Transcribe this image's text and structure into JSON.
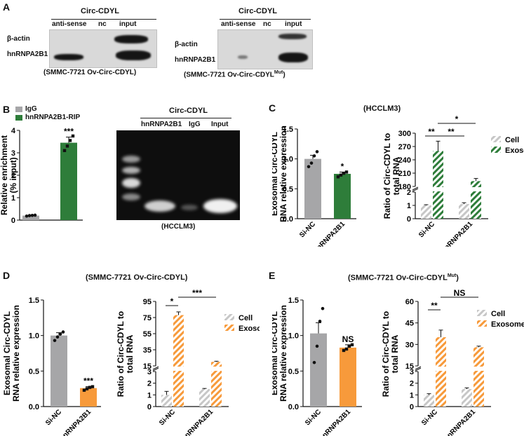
{
  "panelA": {
    "label": "A",
    "left": {
      "header": "Circ-CDYL",
      "lanes": [
        "anti-sense",
        "nc",
        "input"
      ],
      "rows": [
        "β-actin",
        "hnRNPA2B1"
      ],
      "caption": "(SMMC-7721 Ov-Circ-CDYL)"
    },
    "right": {
      "header": "Circ-CDYL",
      "lanes": [
        "anti-sense",
        "nc",
        "input"
      ],
      "rows": [
        "β-actin",
        "hnRNPA2B1"
      ],
      "caption_main": "(SMMC-7721 Ov-Circ-CDYL",
      "caption_sup": "Mut",
      "caption_end": ")"
    }
  },
  "panelB": {
    "label": "B",
    "legend": [
      "IgG",
      "hnRNPA2B1-RIP"
    ],
    "colors": {
      "igg": "#a6a6a8",
      "rip": "#2e7d3a"
    },
    "gel_header": "Circ-CDYL",
    "gel_lanes": [
      "hnRNPA2B1",
      "IgG",
      "Input"
    ],
    "gel_caption": "(HCCLM3)"
  },
  "panelC": {
    "label": "C",
    "title": "(HCCLM3)"
  },
  "panelD": {
    "label": "D",
    "title": "(SMMC-7721 Ov-Circ-CDYL)"
  },
  "panelE": {
    "label": "E",
    "title_main": "(SMMC-7721 Ov-Circ-CDYL",
    "title_sup": "Mut",
    "title_end": ")"
  },
  "chart_data": [
    {
      "id": "B-enrichment",
      "type": "bar",
      "ylabel": "Relative enrichment (% input)",
      "categories": [
        "IgG",
        "hnRNPA2B1-RIP"
      ],
      "values": [
        0.2,
        3.45
      ],
      "errors": [
        0.02,
        0.25
      ],
      "ylim": [
        0,
        4
      ],
      "yticks": [
        0,
        1,
        2,
        3,
        4
      ],
      "colors": [
        "#a6a6a8",
        "#2e7d3a"
      ],
      "points": [
        [
          0.18,
          0.2,
          0.21,
          0.22
        ],
        [
          3.1,
          3.3,
          3.55,
          3.75
        ]
      ],
      "significance": [
        "",
        "***"
      ]
    },
    {
      "id": "C-exosomal",
      "type": "bar",
      "ylabel": "Exosomal Circ-CDYL RNA relative expression",
      "categories": [
        "Si-NC",
        "Si-hnRNPA2B1"
      ],
      "values": [
        1.0,
        0.75
      ],
      "errors": [
        0.06,
        0.03
      ],
      "ylim": [
        0,
        1.5
      ],
      "yticks": [
        0.0,
        0.5,
        1.0,
        1.5
      ],
      "colors": [
        "#a6a6a8",
        "#2e7d3a"
      ],
      "points": [
        [
          0.87,
          0.93,
          1.05,
          1.12
        ],
        [
          0.7,
          0.73,
          0.76,
          0.78
        ]
      ],
      "significance": [
        "",
        "*"
      ]
    },
    {
      "id": "C-ratio",
      "type": "bar",
      "ylabel": "Ratio of Circ-CDYL to total RNA",
      "categories": [
        "Si-NC",
        "Si-hnRNPA2B1"
      ],
      "series": [
        {
          "name": "Cell",
          "values": [
            1.0,
            1.1
          ],
          "errors": [
            0.05,
            0.1
          ]
        },
        {
          "name": "Exosome",
          "values": [
            260,
            192
          ],
          "errors": [
            22,
            6
          ]
        }
      ],
      "yticks": [
        "0",
        "1",
        "2",
        "180",
        "210",
        "240",
        "270",
        "300"
      ],
      "colors": {
        "Cell": "#c7c7c7",
        "Exosome": "#2e7d3a"
      },
      "significance_lines": [
        {
          "from": "Si-NC Cell",
          "to": "Si-NC Exosome",
          "text": "**"
        },
        {
          "from": "Si-NC Exosome",
          "to": "Si-hnRNPA2B1 Exosome",
          "text": "*"
        },
        {
          "from": "Si-NC Exosome",
          "to": "Si-hnRNPA2B1 Cell",
          "text": "**"
        }
      ]
    },
    {
      "id": "D-exosomal",
      "type": "bar",
      "ylabel": "Exosomal Circ-CDYL RNA relative expression",
      "categories": [
        "Si-NC",
        "Si-hnRNPA2B1"
      ],
      "values": [
        1.0,
        0.26
      ],
      "errors": [
        0.04,
        0.02
      ],
      "ylim": [
        0,
        1.5
      ],
      "yticks": [
        0.0,
        0.5,
        1.0,
        1.5
      ],
      "colors": [
        "#a6a6a8",
        "#f79a3b"
      ],
      "points": [
        [
          0.93,
          0.98,
          1.02,
          1.05
        ],
        [
          0.23,
          0.25,
          0.27,
          0.28
        ]
      ],
      "significance": [
        "",
        "***"
      ]
    },
    {
      "id": "D-ratio",
      "type": "bar",
      "ylabel": "Ratio of Circ-CDYL to total RNA",
      "categories": [
        "Si-NC",
        "Si-hnRNPA2B1"
      ],
      "series": [
        {
          "name": "Cell",
          "values": [
            1.0,
            1.5
          ],
          "errors": [
            0.3,
            0.05
          ]
        },
        {
          "name": "Exosome",
          "values": [
            78,
            20
          ],
          "errors": [
            4,
            0.8
          ]
        }
      ],
      "yticks": [
        "0",
        "1",
        "2",
        "3",
        "15",
        "35",
        "55",
        "75",
        "95"
      ],
      "colors": {
        "Cell": "#c7c7c7",
        "Exosome": "#f79a3b"
      },
      "significance_lines": [
        {
          "from": "Si-NC Cell",
          "to": "Si-NC Exosome",
          "text": "*"
        },
        {
          "from": "Si-NC Exosome",
          "to": "Si-hnRNPA2B1 Exosome",
          "text": "***"
        }
      ]
    },
    {
      "id": "E-exosomal",
      "type": "bar",
      "ylabel": "Exosomal Circ-CDYL RNA relative expression",
      "categories": [
        "Si-NC",
        "Si-hnRNPA2B1"
      ],
      "values": [
        1.03,
        0.83
      ],
      "errors": [
        0.15,
        0.04
      ],
      "ylim": [
        0,
        1.5
      ],
      "yticks": [
        0.0,
        0.5,
        1.0,
        1.5
      ],
      "colors": [
        "#a6a6a8",
        "#f79a3b"
      ],
      "points": [
        [
          0.62,
          0.85,
          1.2,
          1.38
        ],
        [
          0.79,
          0.81,
          0.85,
          0.87
        ]
      ],
      "significance": [
        "",
        "NS"
      ]
    },
    {
      "id": "E-ratio",
      "type": "bar",
      "ylabel": "Ratio of Circ-CDYL to total RNA",
      "categories": [
        "Si-NC",
        "Si-hnRNPA2B1"
      ],
      "series": [
        {
          "name": "Cell",
          "values": [
            1.0,
            1.5
          ],
          "errors": [
            0.1,
            0.1
          ]
        },
        {
          "name": "Exosome",
          "values": [
            35,
            28
          ],
          "errors": [
            5,
            0.8
          ]
        }
      ],
      "yticks": [
        "0",
        "1",
        "2",
        "3",
        "15",
        "30",
        "45",
        "60"
      ],
      "colors": {
        "Cell": "#c7c7c7",
        "Exosome": "#f79a3b"
      },
      "significance_lines": [
        {
          "from": "Si-NC Cell",
          "to": "Si-NC Exosome",
          "text": "**"
        },
        {
          "from": "Si-NC Exosome",
          "to": "Si-hnRNPA2B1 Exosome",
          "text": "NS"
        }
      ]
    }
  ]
}
